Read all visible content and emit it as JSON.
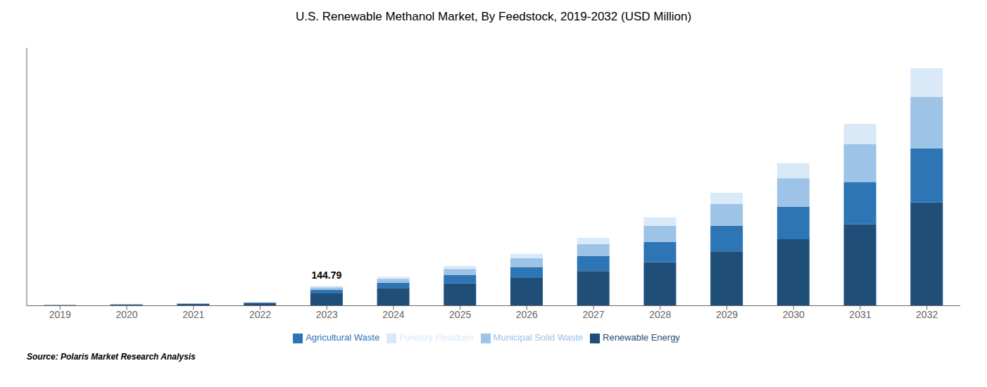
{
  "chart_data": {
    "type": "bar",
    "title": "U.S. Renewable Methanol Market, By Feedstock, 2019-2032 (USD Million)",
    "categories": [
      "2019",
      "2020",
      "2021",
      "2022",
      "2023",
      "2024",
      "2025",
      "2026",
      "2027",
      "2028",
      "2029",
      "2030",
      "2031",
      "2032"
    ],
    "series": [
      {
        "name": "Renewable Energy",
        "color": "#1F4E79",
        "values": [
          5,
          8,
          12,
          18,
          90,
          130,
          165,
          205,
          255,
          320,
          400,
          490,
          600,
          760
        ]
      },
      {
        "name": "Agricultural Waste",
        "color": "#2E75B6",
        "values": [
          1.5,
          2,
          3,
          4,
          28,
          40,
          60,
          80,
          110,
          150,
          190,
          240,
          310,
          400
        ]
      },
      {
        "name": "Municipal Solid Waste",
        "color": "#9DC3E6",
        "values": [
          1,
          1.5,
          2,
          3,
          18,
          28,
          45,
          65,
          90,
          120,
          160,
          210,
          280,
          380
        ]
      },
      {
        "name": "Forestry Residues",
        "color": "#DAE9F8",
        "values": [
          0.5,
          1,
          1.5,
          2,
          9,
          14,
          22,
          32,
          45,
          62,
          82,
          110,
          150,
          210
        ]
      }
    ],
    "stacked": true,
    "ylim": [
      0,
      1900
    ],
    "tick_labels": "x",
    "grid": false,
    "legend": "bottom",
    "annotations": [
      {
        "text": "144.79",
        "category": "2023"
      }
    ],
    "source": "Source: Polaris Market Research Analysis"
  }
}
